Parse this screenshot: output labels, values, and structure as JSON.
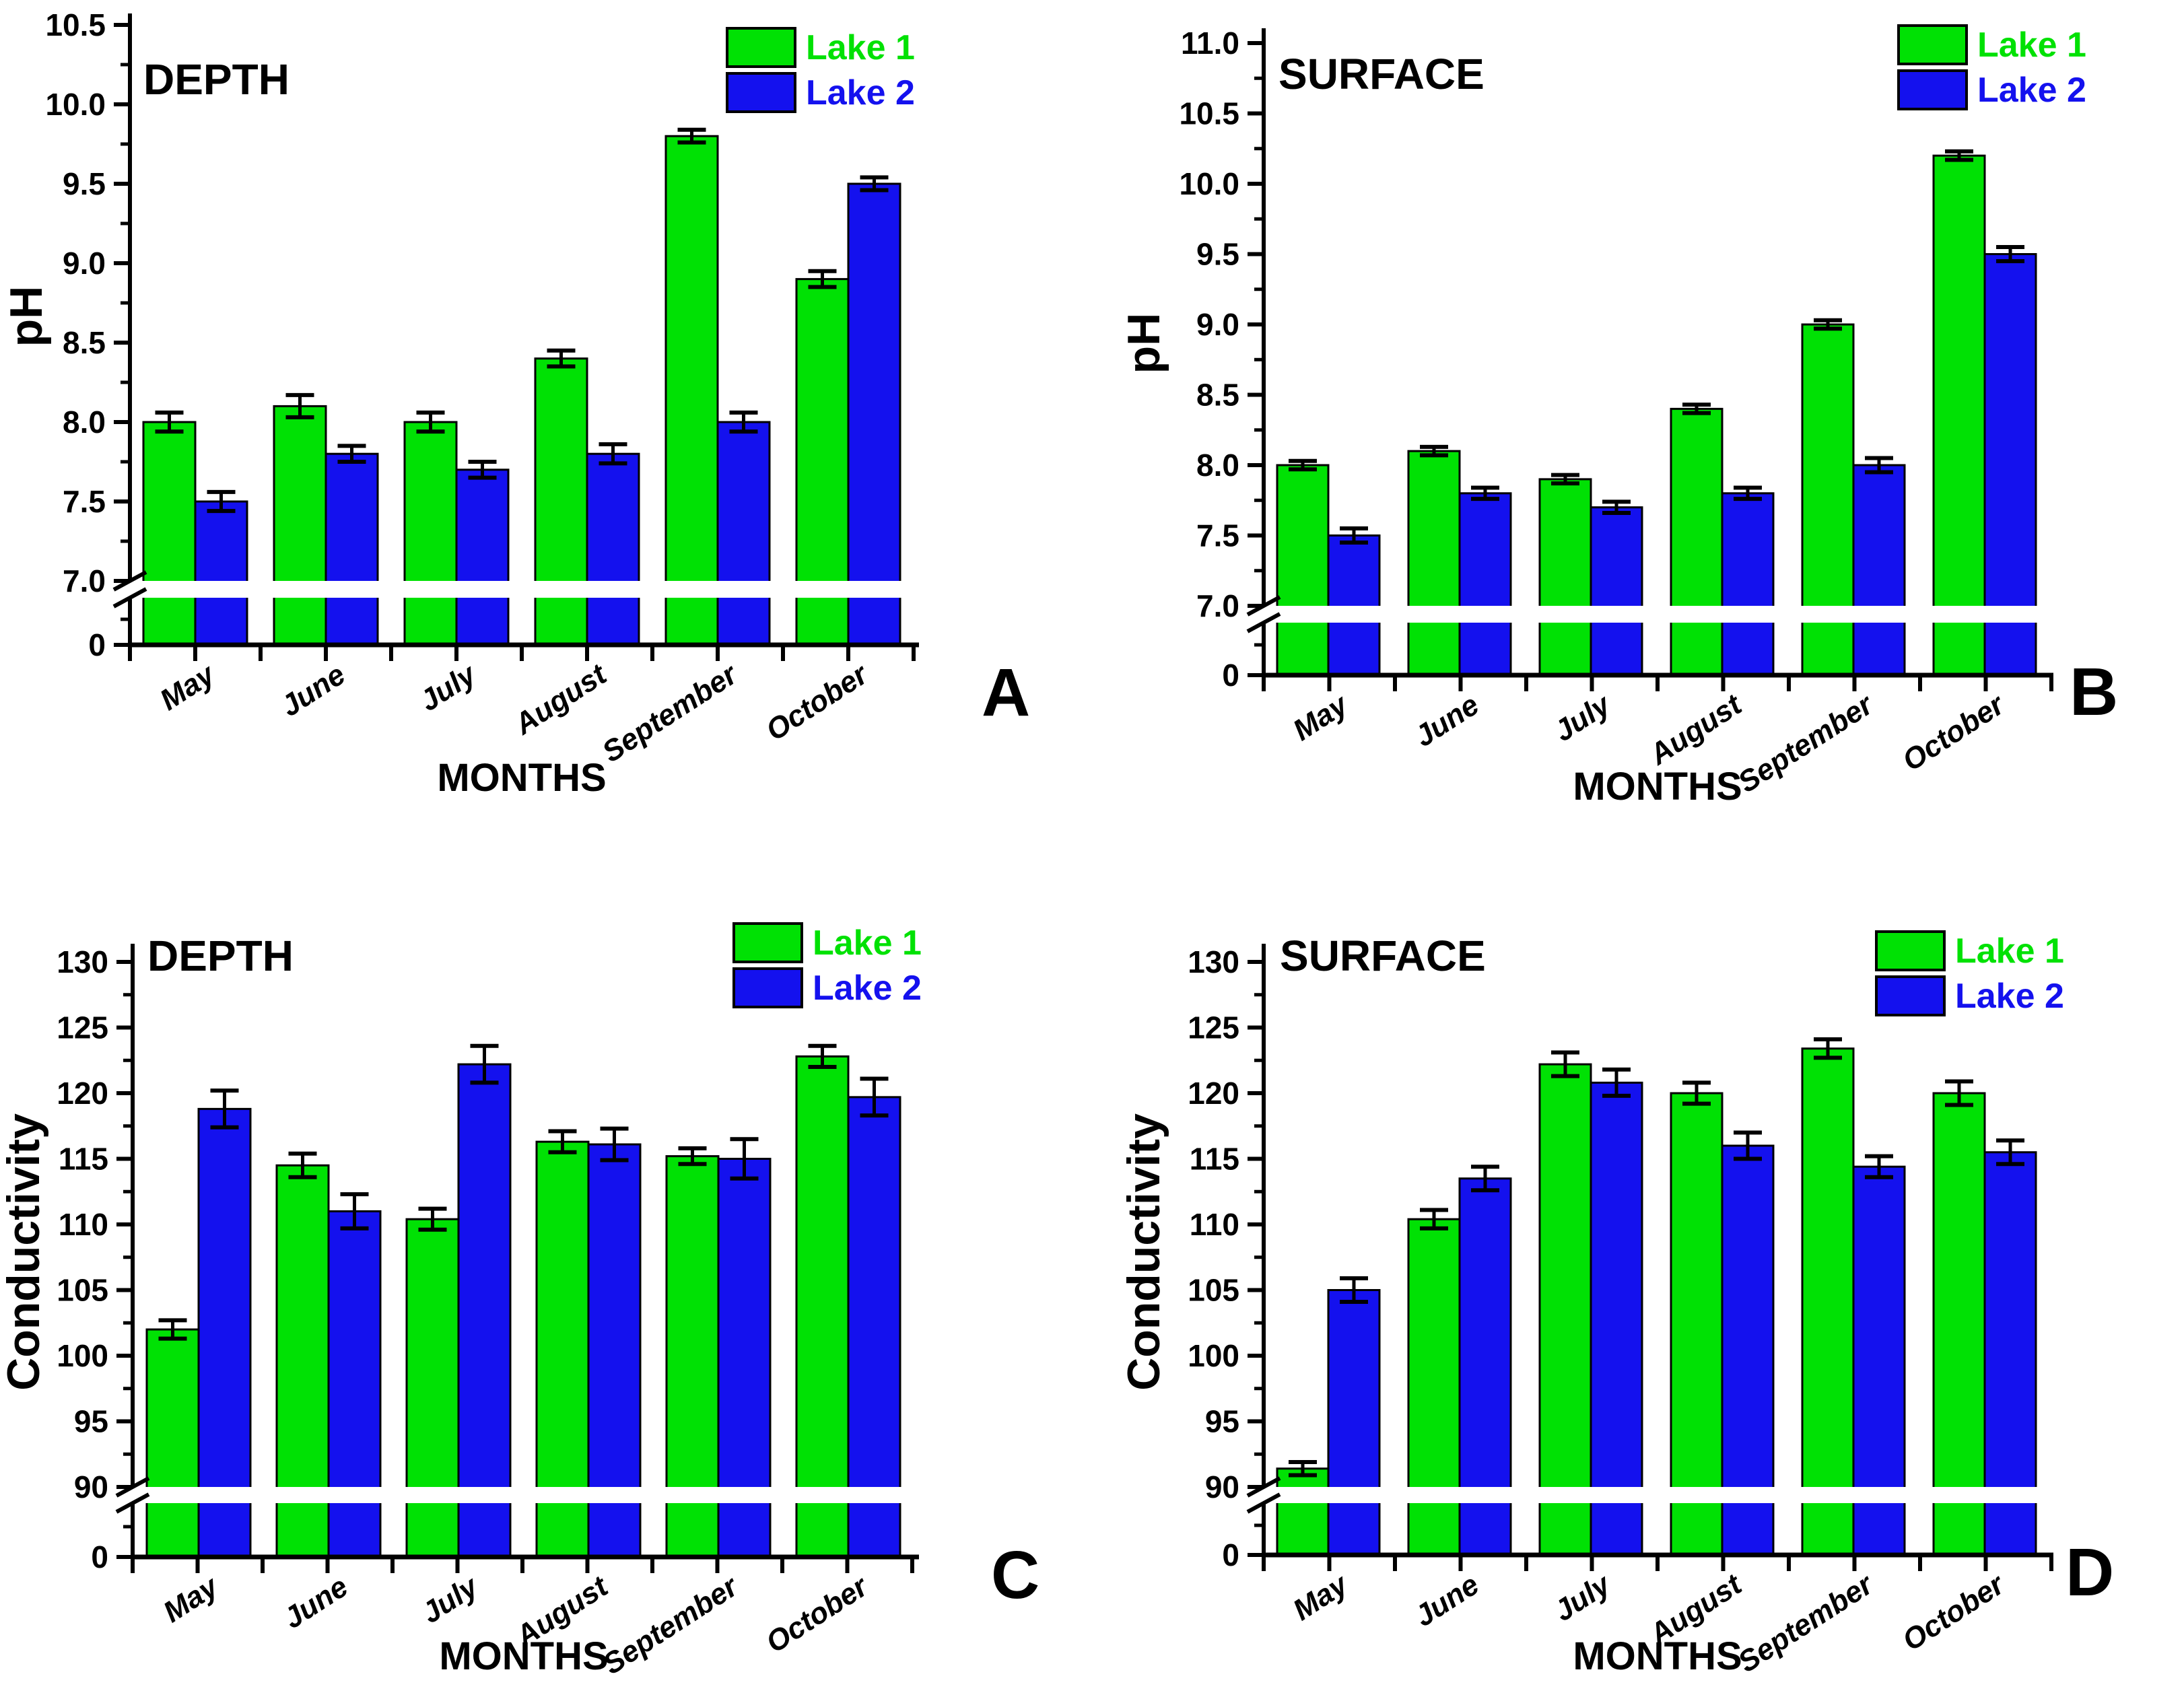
{
  "legend": {
    "lake1_label": "Lake 1",
    "lake2_label": "Lake 2"
  },
  "colors": {
    "lake1": "#00e104",
    "lake2": "#1411ee",
    "axis": "#000000",
    "background": "#ffffff"
  },
  "xlabel": "MONTHS",
  "chart_data": [
    {
      "panel_letter": "A",
      "type": "bar",
      "title": "DEPTH",
      "ylabel": "pH",
      "xlabel": "MONTHS",
      "categories": [
        "May",
        "June",
        "July",
        "August",
        "September",
        "October"
      ],
      "series": [
        {
          "name": "Lake 1",
          "color": "#00e104",
          "values": [
            8.0,
            8.1,
            8.0,
            8.4,
            9.8,
            8.9
          ],
          "errors": [
            0.06,
            0.07,
            0.06,
            0.05,
            0.04,
            0.05
          ]
        },
        {
          "name": "Lake 2",
          "color": "#1411ee",
          "values": [
            7.5,
            7.8,
            7.7,
            7.8,
            8.0,
            9.5
          ],
          "errors": [
            0.06,
            0.05,
            0.05,
            0.06,
            0.06,
            0.04
          ]
        }
      ],
      "yticks": [
        7.0,
        7.5,
        8.0,
        8.5,
        9.0,
        9.5,
        10.0,
        10.5
      ],
      "ytick_decimals": 1,
      "minor_step": 0.25,
      "axis_break": {
        "baseline_label": "0",
        "resume_at": 7.0
      },
      "ylim": [
        7.0,
        10.6
      ],
      "legend_position": "top-right-inside",
      "grid": false
    },
    {
      "panel_letter": "B",
      "type": "bar",
      "title": "SURFACE",
      "ylabel": "pH",
      "xlabel": "MONTHS",
      "categories": [
        "May",
        "June",
        "July",
        "August",
        "September",
        "October"
      ],
      "series": [
        {
          "name": "Lake 1",
          "color": "#00e104",
          "values": [
            8.0,
            8.1,
            7.9,
            8.4,
            9.0,
            10.2
          ],
          "errors": [
            0.03,
            0.03,
            0.03,
            0.03,
            0.03,
            0.03
          ]
        },
        {
          "name": "Lake 2",
          "color": "#1411ee",
          "values": [
            7.5,
            7.8,
            7.7,
            7.8,
            8.0,
            9.5
          ],
          "errors": [
            0.05,
            0.04,
            0.04,
            0.04,
            0.05,
            0.05
          ]
        }
      ],
      "yticks": [
        7.0,
        7.5,
        8.0,
        8.5,
        9.0,
        9.5,
        10.0,
        10.5,
        11.0
      ],
      "ytick_decimals": 1,
      "minor_step": 0.25,
      "axis_break": {
        "baseline_label": "0",
        "resume_at": 7.0
      },
      "ylim": [
        7.0,
        11.1
      ],
      "legend_position": "top-right-inside",
      "grid": false
    },
    {
      "panel_letter": "C",
      "type": "bar",
      "title": "DEPTH",
      "ylabel": "Conductivity",
      "xlabel": "MONTHS",
      "categories": [
        "May",
        "June",
        "July",
        "August",
        "September",
        "October"
      ],
      "series": [
        {
          "name": "Lake 1",
          "color": "#00e104",
          "values": [
            102.0,
            114.5,
            110.4,
            116.3,
            115.2,
            122.8
          ],
          "errors": [
            0.7,
            0.9,
            0.8,
            0.8,
            0.6,
            0.8
          ]
        },
        {
          "name": "Lake 2",
          "color": "#1411ee",
          "values": [
            118.8,
            111.0,
            122.2,
            116.1,
            115.0,
            119.7
          ],
          "errors": [
            1.4,
            1.3,
            1.4,
            1.2,
            1.5,
            1.4
          ]
        }
      ],
      "yticks": [
        90,
        95,
        100,
        105,
        110,
        115,
        120,
        125,
        130
      ],
      "ytick_decimals": 0,
      "minor_step": 2.5,
      "axis_break": {
        "baseline_label": "0",
        "resume_at": 90
      },
      "ylim": [
        90,
        132
      ],
      "legend_position": "top-right-inside",
      "grid": false
    },
    {
      "panel_letter": "D",
      "type": "bar",
      "title": "SURFACE",
      "ylabel": "Conductivity",
      "xlabel": "MONTHS",
      "categories": [
        "May",
        "June",
        "July",
        "August",
        "September",
        "October"
      ],
      "series": [
        {
          "name": "Lake 1",
          "color": "#00e104",
          "values": [
            91.4,
            110.4,
            122.2,
            120.0,
            123.4,
            120.0
          ],
          "errors": [
            0.5,
            0.7,
            0.9,
            0.8,
            0.7,
            0.9
          ]
        },
        {
          "name": "Lake 2",
          "color": "#1411ee",
          "values": [
            105.0,
            113.5,
            120.8,
            116.0,
            114.4,
            115.5
          ],
          "errors": [
            0.9,
            0.9,
            1.0,
            1.0,
            0.8,
            0.9
          ]
        }
      ],
      "yticks": [
        90,
        95,
        100,
        105,
        110,
        115,
        120,
        125,
        130
      ],
      "ytick_decimals": 0,
      "minor_step": 2.5,
      "axis_break": {
        "baseline_label": "0",
        "resume_at": 90
      },
      "ylim": [
        90,
        132
      ],
      "legend_position": "top-right-inside",
      "grid": false
    }
  ]
}
